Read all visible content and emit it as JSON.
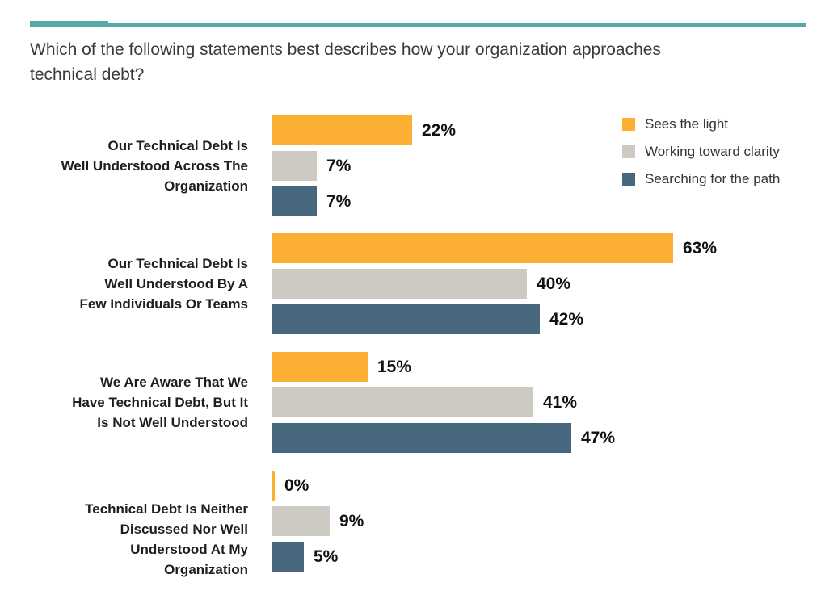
{
  "header": {
    "title": "Which of the following statements best describes how your organization approaches technical debt?",
    "title_lines": [
      "Which of the following statements best describes how your organization approaches",
      "technical debt?"
    ],
    "accent_color": "#54A8A6"
  },
  "legend": {
    "position": "top-right",
    "items": [
      {
        "label": "Sees the light",
        "color": "#FBB034"
      },
      {
        "label": "Working toward clarity",
        "color": "#CCCAC2"
      },
      {
        "label": "Searching for the path",
        "color": "#47677E"
      }
    ]
  },
  "chart_data": {
    "type": "bar",
    "orientation": "horizontal",
    "unit": "percent",
    "grid": false,
    "axes_shown": false,
    "legend_position": "top-right",
    "xlim": [
      0,
      80
    ],
    "title": "Which of the following statements best describes how your organization approaches technical debt?",
    "categories": [
      "Our Technical Debt Is Well Understood Across The Organization",
      "Our Technical Debt Is Well Understood By A Few Individuals Or Teams",
      "We Are Aware That We Have Technical Debt, But It Is Not Well Understood",
      "Technical Debt Is Neither Discussed Nor Well Understood At My Organization"
    ],
    "category_lines": [
      [
        "Our Technical Debt Is",
        "Well Understood Across The",
        "Organization"
      ],
      [
        "Our Technical Debt Is",
        "Well Understood By A",
        "Few Individuals Or Teams"
      ],
      [
        "We Are Aware That We",
        "Have Technical Debt, But It",
        "Is Not Well Understood"
      ],
      [
        "Technical Debt Is Neither",
        "Discussed Nor Well",
        "Understood At My",
        "Organization"
      ]
    ],
    "series": [
      {
        "name": "Sees the light",
        "color": "#FBB034",
        "values": [
          22,
          63,
          15,
          0
        ],
        "labels": [
          "22%",
          "63%",
          "15%",
          "0%"
        ]
      },
      {
        "name": "Working toward clarity",
        "color": "#CCCAC2",
        "values": [
          7,
          40,
          41,
          9
        ],
        "labels": [
          "7%",
          "40%",
          "41%",
          "9%"
        ]
      },
      {
        "name": "Searching for the path",
        "color": "#47677E",
        "values": [
          7,
          42,
          47,
          5
        ],
        "labels": [
          "7%",
          "42%",
          "47%",
          "5%"
        ]
      }
    ]
  }
}
